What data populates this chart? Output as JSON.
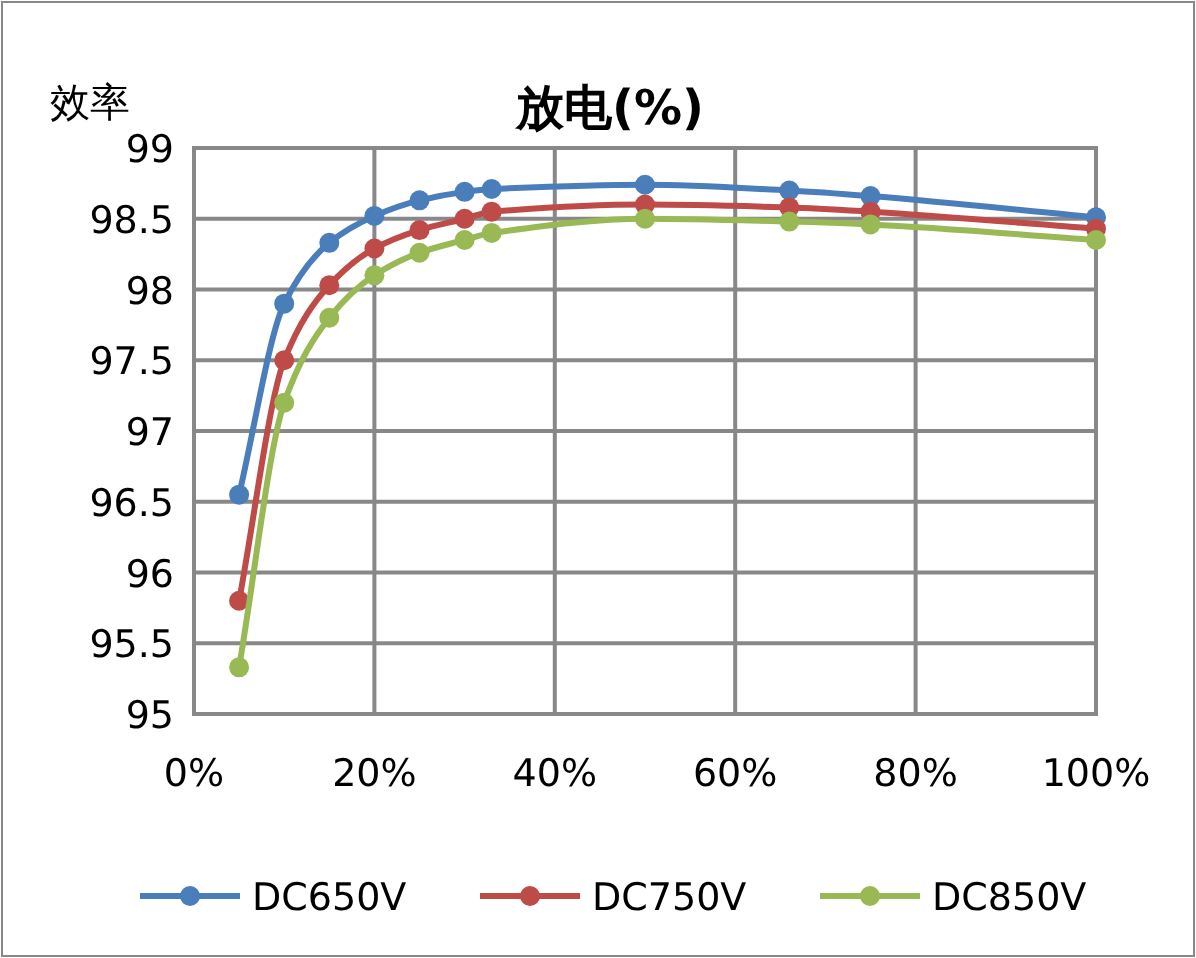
{
  "chart_data": {
    "type": "line",
    "title": "放电(%)",
    "ylabel": "效率",
    "x": [
      5,
      10,
      15,
      20,
      25,
      30,
      33,
      50,
      66,
      75,
      100
    ],
    "series": [
      {
        "name": "DC650V",
        "color": "#4a7ebb",
        "values": [
          96.55,
          97.9,
          98.33,
          98.52,
          98.63,
          98.69,
          98.71,
          98.74,
          98.7,
          98.66,
          98.51
        ]
      },
      {
        "name": "DC750V",
        "color": "#be4b48",
        "values": [
          95.8,
          97.5,
          98.03,
          98.29,
          98.42,
          98.5,
          98.55,
          98.6,
          98.58,
          98.55,
          98.43
        ]
      },
      {
        "name": "DC850V",
        "color": "#98b954",
        "values": [
          95.33,
          97.2,
          97.8,
          98.1,
          98.26,
          98.35,
          98.4,
          98.5,
          98.48,
          98.46,
          98.35
        ]
      }
    ],
    "xlim": [
      0,
      100
    ],
    "xticks": [
      {
        "value": 0,
        "label": "0%"
      },
      {
        "value": 20,
        "label": "20%"
      },
      {
        "value": 40,
        "label": "40%"
      },
      {
        "value": 60,
        "label": "60%"
      },
      {
        "value": 80,
        "label": "80%"
      },
      {
        "value": 100,
        "label": "100%"
      }
    ],
    "ylim": [
      95,
      99
    ],
    "yticks": [
      95,
      95.5,
      96,
      96.5,
      97,
      97.5,
      98,
      98.5,
      99
    ],
    "grid": true,
    "legend": "bottom",
    "marker": "circle",
    "line_style": "solid"
  }
}
